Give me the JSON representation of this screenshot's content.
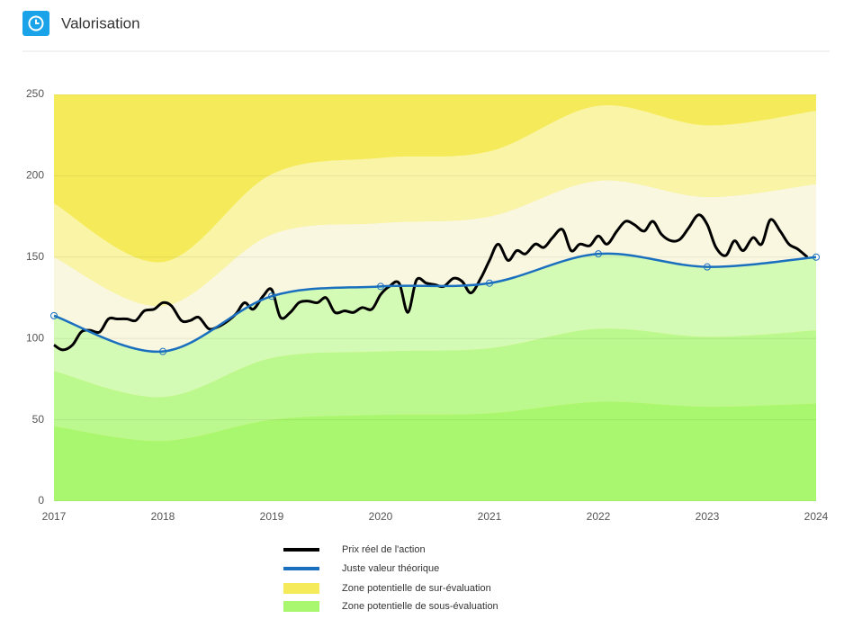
{
  "header": {
    "title": "Valorisation"
  },
  "chart_data": {
    "type": "line",
    "xlim": [
      2017,
      2024
    ],
    "xticks": [
      2017,
      2018,
      2019,
      2020,
      2021,
      2022,
      2023,
      2024
    ],
    "ylim": [
      0,
      250
    ],
    "yticks": [
      0,
      50,
      100,
      150,
      200,
      250
    ],
    "grid": true,
    "series": [
      {
        "name": "Prix réel de l'action",
        "color": "#000000",
        "x": [
          2017,
          2017.08,
          2017.17,
          2017.25,
          2017.33,
          2017.42,
          2017.5,
          2017.58,
          2017.67,
          2017.75,
          2017.83,
          2017.92,
          2018,
          2018.08,
          2018.17,
          2018.25,
          2018.33,
          2018.42,
          2018.5,
          2018.58,
          2018.67,
          2018.75,
          2018.83,
          2018.92,
          2019,
          2019.08,
          2019.17,
          2019.25,
          2019.33,
          2019.42,
          2019.5,
          2019.58,
          2019.67,
          2019.75,
          2019.83,
          2019.92,
          2020,
          2020.08,
          2020.17,
          2020.25,
          2020.33,
          2020.42,
          2020.5,
          2020.58,
          2020.67,
          2020.75,
          2020.83,
          2020.92,
          2021,
          2021.08,
          2021.17,
          2021.25,
          2021.33,
          2021.42,
          2021.5,
          2021.58,
          2021.67,
          2021.75,
          2021.83,
          2021.92,
          2022,
          2022.08,
          2022.17,
          2022.25,
          2022.33,
          2022.42,
          2022.5,
          2022.58,
          2022.67,
          2022.75,
          2022.83,
          2022.92,
          2023,
          2023.08,
          2023.17,
          2023.25,
          2023.33,
          2023.42,
          2023.5,
          2023.58,
          2023.67,
          2023.75,
          2023.83,
          2023.92
        ],
        "values": [
          96,
          93,
          96,
          104,
          105,
          104,
          112,
          112,
          112,
          111,
          117,
          118,
          122,
          120,
          111,
          111,
          113,
          106,
          107,
          110,
          115,
          122,
          118,
          126,
          130,
          113,
          116,
          122,
          123,
          122,
          125,
          116,
          117,
          116,
          119,
          118,
          127,
          132,
          134,
          116,
          136,
          134,
          133,
          132,
          137,
          135,
          128,
          137,
          148,
          158,
          148,
          154,
          152,
          158,
          156,
          162,
          167,
          154,
          158,
          157,
          163,
          158,
          166,
          172,
          170,
          166,
          172,
          164,
          160,
          161,
          168,
          176,
          170,
          156,
          151,
          160,
          154,
          162,
          158,
          173,
          166,
          158,
          155,
          150
        ]
      },
      {
        "name": "Juste valeur théorique",
        "color": "#1a6fbf",
        "x": [
          2017,
          2018,
          2019,
          2020,
          2021,
          2022,
          2023,
          2024
        ],
        "values": [
          114,
          92,
          126,
          132,
          134,
          152,
          144,
          150
        ]
      }
    ],
    "zones": {
      "over": {
        "name": "Zone potentielle de sur-évaluation",
        "color": "#f5eb5a"
      },
      "under": {
        "name": "Zone potentielle de sous-évaluation",
        "color": "#a8f76e"
      }
    },
    "bands_below": [
      {
        "color": "#a8f76e",
        "values": [
          46,
          37,
          50,
          53,
          54,
          61,
          58,
          60
        ]
      },
      {
        "color": "#bbf98f",
        "values": [
          34,
          27,
          38,
          39,
          40,
          45,
          43,
          45
        ]
      },
      {
        "color": "#d4fbb6",
        "values": [
          34,
          28,
          38,
          40,
          40,
          46,
          43,
          45
        ]
      }
    ],
    "bands_above": [
      {
        "color": "#f9f7df",
        "values": [
          36,
          28,
          38,
          39,
          41,
          45,
          43,
          45
        ]
      },
      {
        "color": "#faf4a6",
        "values": [
          33,
          27,
          37,
          40,
          40,
          46,
          44,
          45
        ]
      }
    ]
  }
}
